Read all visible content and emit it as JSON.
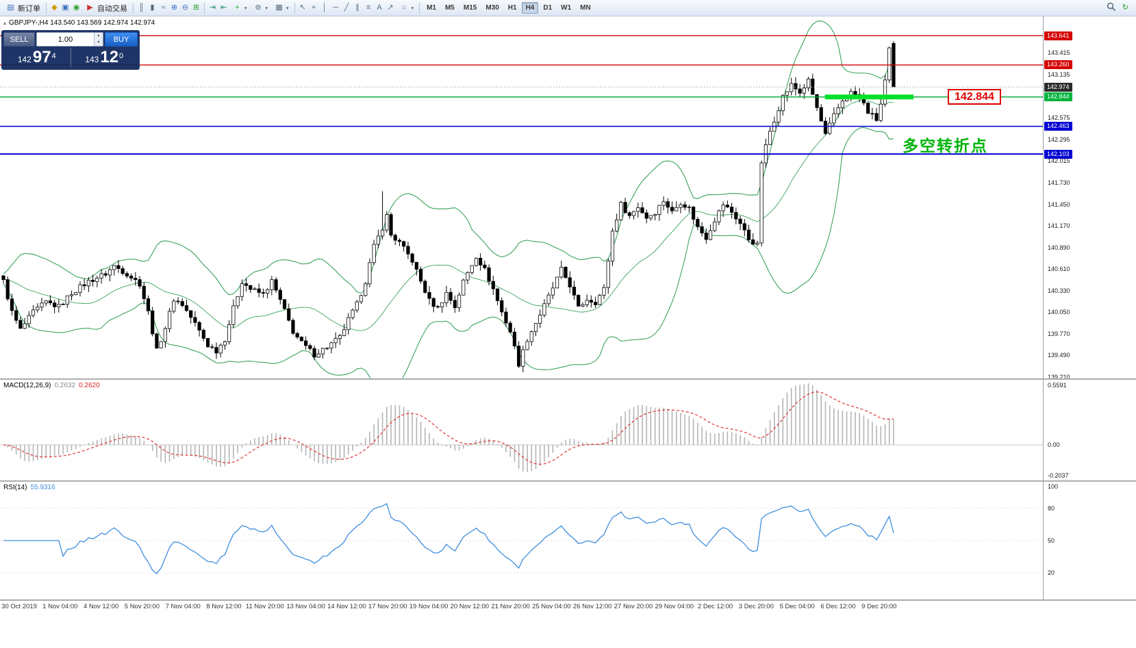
{
  "toolbar": {
    "new_order_label": "新订单",
    "autotrading_label": "自动交易",
    "timeframes": [
      "M1",
      "M5",
      "M15",
      "M30",
      "H1",
      "H4",
      "D1",
      "W1",
      "MN"
    ],
    "active_timeframe": "H4"
  },
  "icons": {
    "new_order": "▤",
    "metaeditor": "◆",
    "terminal": "▣",
    "info": "◉",
    "autotrading": "▶",
    "bar_chart": "║",
    "candle_chart": "▮",
    "line_chart": "≈",
    "zoom_in": "⊕",
    "zoom_out": "⊖",
    "tile_windows": "⊞",
    "autoscroll": "⇥",
    "chart_shift": "⇤",
    "indicators_plus": "+",
    "periods": "⊚",
    "templates": "▦",
    "cursor": "↖",
    "crosshair": "+",
    "vline": "│",
    "hline": "─",
    "trendline": "╱",
    "channel": "∥",
    "fibonacci": "≡",
    "text_tool": "A",
    "arrow_tool": "↗",
    "shapes": "○",
    "dropdown": "▾",
    "refresh": "↻",
    "quote_marker": "▴",
    "spin_up": "▴",
    "spin_down": "▾"
  },
  "chart_header": {
    "quote": "GBPJPY-,H4 143.540 143.569 142.974 142.974"
  },
  "trade_panel": {
    "sell_label": "SELL",
    "buy_label": "BUY",
    "volume": "1.00",
    "sell_price_small": "142",
    "sell_price_big": "97",
    "sell_price_sup": "4",
    "buy_price_small": "143",
    "buy_price_big": "12",
    "buy_price_sup": "0"
  },
  "annotations": {
    "price_box": "142.844",
    "note_cn": "多空转折点"
  },
  "indicators": {
    "macd": {
      "name": "MACD(12,26,9)",
      "value_main": "0.2632",
      "value_signal": "0.2620"
    },
    "rsi": {
      "name": "RSI(14)",
      "value": "55.9316"
    }
  },
  "axis": {
    "macd_labels": {
      "top": "0.5591",
      "zero": "0.00",
      "bottom": "-0.2037"
    }
  },
  "time_axis": [
    "30 Oct 2019",
    "1 Nov 04:00",
    "4 Nov 12:00",
    "5 Nov 20:00",
    "7 Nov 04:00",
    "8 Nov 12:00",
    "11 Nov 20:00",
    "13 Nov 04:00",
    "14 Nov 12:00",
    "17 Nov 20:00",
    "19 Nov 04:00",
    "20 Nov 12:00",
    "21 Nov 20:00",
    "25 Nov 04:00",
    "26 Nov 12:00",
    "27 Nov 20:00",
    "29 Nov 04:00",
    "2 Dec 12:00",
    "3 Dec 20:00",
    "5 Dec 04:00",
    "6 Dec 12:00",
    "9 Dec 20:00"
  ],
  "colors": {
    "buy_button": "#1f74e0",
    "sell_button": "#5f6f92",
    "bull_candle": "#ffffff",
    "bear_candle": "#000000",
    "bollinger": "#3aa35c",
    "macd_histogram": "#b4b4b4",
    "macd_signal": "#e03232",
    "rsi_line": "#3f8ede",
    "level_red": "#d40000",
    "level_green": "#00a532",
    "level_blue": "#0000d2",
    "highlight_green": "#00e02a"
  },
  "chart_data": {
    "type": "candlestick",
    "symbol": "GBPJPY-",
    "timeframe": "H4",
    "current_ohlc": {
      "open": 143.54,
      "high": 143.569,
      "low": 142.974,
      "close": 142.974
    },
    "ylim": [
      139.19,
      143.89
    ],
    "bar_count": 210,
    "last_ohlc": [
      143.54,
      143.569,
      142.974,
      142.974
    ],
    "wick_overrides": [
      [
        89,
        141.62
      ]
    ],
    "close_anchors": [
      [
        0,
        140.45
      ],
      [
        2,
        140.05
      ],
      [
        4,
        139.82
      ],
      [
        7,
        140.05
      ],
      [
        10,
        140.18
      ],
      [
        13,
        140.12
      ],
      [
        16,
        140.3
      ],
      [
        20,
        140.45
      ],
      [
        24,
        140.55
      ],
      [
        26,
        140.65
      ],
      [
        29,
        140.55
      ],
      [
        32,
        140.42
      ],
      [
        34,
        140.05
      ],
      [
        36,
        139.55
      ],
      [
        38,
        139.85
      ],
      [
        40,
        140.22
      ],
      [
        42,
        140.15
      ],
      [
        45,
        139.9
      ],
      [
        48,
        139.62
      ],
      [
        50,
        139.55
      ],
      [
        52,
        139.7
      ],
      [
        54,
        140.1
      ],
      [
        56,
        140.45
      ],
      [
        58,
        140.35
      ],
      [
        61,
        140.28
      ],
      [
        63,
        140.45
      ],
      [
        65,
        140.2
      ],
      [
        68,
        139.8
      ],
      [
        70,
        139.65
      ],
      [
        73,
        139.5
      ],
      [
        76,
        139.6
      ],
      [
        79,
        139.72
      ],
      [
        81,
        139.95
      ],
      [
        83,
        140.15
      ],
      [
        85,
        140.45
      ],
      [
        87,
        140.9
      ],
      [
        89,
        141.15
      ],
      [
        90,
        141.3
      ],
      [
        91,
        141.05
      ],
      [
        93,
        140.95
      ],
      [
        96,
        140.72
      ],
      [
        98,
        140.45
      ],
      [
        100,
        140.2
      ],
      [
        102,
        140.1
      ],
      [
        104,
        140.3
      ],
      [
        106,
        140.12
      ],
      [
        108,
        140.45
      ],
      [
        111,
        140.78
      ],
      [
        113,
        140.6
      ],
      [
        115,
        140.35
      ],
      [
        117,
        140.05
      ],
      [
        119,
        139.8
      ],
      [
        121,
        139.38
      ],
      [
        123,
        139.7
      ],
      [
        126,
        140.02
      ],
      [
        128,
        140.25
      ],
      [
        131,
        140.6
      ],
      [
        133,
        140.4
      ],
      [
        135,
        140.1
      ],
      [
        137,
        140.22
      ],
      [
        139,
        140.18
      ],
      [
        141,
        140.35
      ],
      [
        143,
        141.1
      ],
      [
        145,
        141.45
      ],
      [
        147,
        141.3
      ],
      [
        149,
        141.42
      ],
      [
        151,
        141.28
      ],
      [
        153,
        141.35
      ],
      [
        155,
        141.5
      ],
      [
        157,
        141.35
      ],
      [
        159,
        141.48
      ],
      [
        161,
        141.4
      ],
      [
        163,
        141.15
      ],
      [
        165,
        141.02
      ],
      [
        167,
        141.25
      ],
      [
        169,
        141.45
      ],
      [
        171,
        141.35
      ],
      [
        173,
        141.2
      ],
      [
        175,
        141.0
      ],
      [
        177,
        140.92
      ],
      [
        178,
        142.0
      ],
      [
        180,
        142.4
      ],
      [
        181,
        142.55
      ],
      [
        183,
        142.85
      ],
      [
        185,
        143.0
      ],
      [
        187,
        142.9
      ],
      [
        189,
        143.05
      ],
      [
        191,
        142.7
      ],
      [
        193,
        142.35
      ],
      [
        195,
        142.6
      ],
      [
        197,
        142.8
      ],
      [
        199,
        142.9
      ],
      [
        201,
        142.85
      ],
      [
        203,
        142.65
      ],
      [
        205,
        142.55
      ],
      [
        206,
        142.75
      ],
      [
        207,
        143.05
      ],
      [
        208,
        143.45
      ],
      [
        209,
        142.974
      ]
    ],
    "ticks": [
      143.415,
      143.135,
      142.575,
      142.295,
      142.015,
      141.73,
      141.45,
      141.17,
      140.89,
      140.61,
      140.33,
      140.05,
      139.77,
      139.49,
      139.21
    ],
    "badges": [
      {
        "price": 143.641,
        "bg": "#d40000"
      },
      {
        "price": 143.26,
        "bg": "#d40000"
      },
      {
        "price": 142.974,
        "bg": "#2b2b2b"
      },
      {
        "price": 142.844,
        "bg": "#00b43c"
      },
      {
        "price": 142.463,
        "bg": "#0000d2"
      },
      {
        "price": 142.103,
        "bg": "#0000d2"
      }
    ],
    "levels": [
      {
        "price": 143.641,
        "color": "#d40000",
        "w": 1.4,
        "dash": ""
      },
      {
        "price": 143.26,
        "color": "#d40000",
        "w": 1.4,
        "dash": ""
      },
      {
        "price": 142.974,
        "color": "#b4b4b4",
        "w": 1,
        "dash": "2 2"
      },
      {
        "price": 142.844,
        "color": "#00a532",
        "w": 1.4,
        "dash": ""
      },
      {
        "price": 142.463,
        "color": "#0000d2",
        "w": 1.4,
        "dash": ""
      },
      {
        "price": 142.103,
        "color": "#0000d2",
        "w": 2,
        "dash": ""
      }
    ],
    "highlight": {
      "price": 142.844,
      "x1_frac": 0.791,
      "x2_frac": 0.876,
      "height": 7,
      "color": "#00e02a"
    },
    "bollinger": {
      "period": 20,
      "deviation": 2
    },
    "macd": {
      "fast": 12,
      "slow": 26,
      "signal": 9,
      "axis_range": [
        -0.2037,
        0.5591
      ]
    },
    "rsi": {
      "period": 14,
      "levels": [
        100,
        80,
        50,
        20
      ],
      "value": 55.9316
    }
  }
}
